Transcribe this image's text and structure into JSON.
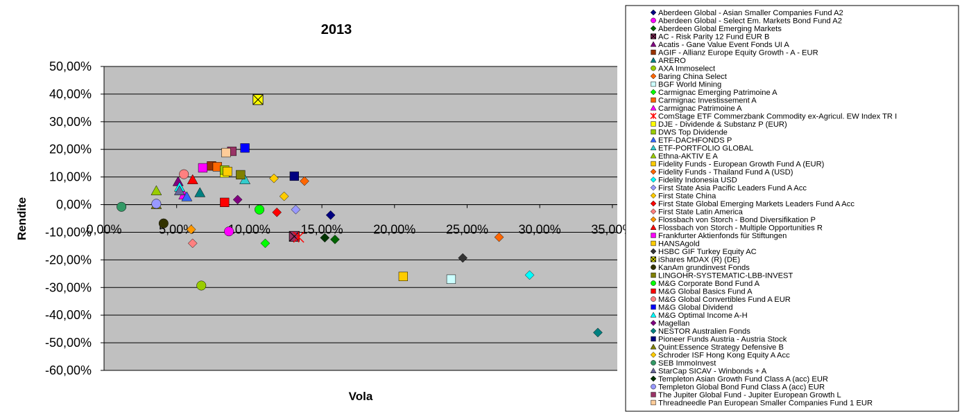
{
  "chart_data": {
    "type": "scatter",
    "title": "2013",
    "xlabel": "Vola",
    "ylabel": "Rendite",
    "xlim": [
      0,
      0.35
    ],
    "ylim": [
      -0.6,
      0.5
    ],
    "x_ticks": [
      "0,00%",
      "5,00%",
      "10,00%",
      "15,00%",
      "20,00%",
      "25,00%",
      "30,00%",
      "35,00%"
    ],
    "y_ticks": [
      "50,00%",
      "40,00%",
      "30,00%",
      "20,00%",
      "10,00%",
      "0,00%",
      "-10,00%",
      "-20,00%",
      "-30,00%",
      "-40,00%",
      "-50,00%",
      "-60,00%"
    ],
    "grid": "horizontal",
    "legend_position": "right",
    "plot_background": "#c0c0c0",
    "series": [
      {
        "name": "Aberdeen Global - Asian Smaller Companies Fund A2",
        "color": "#000080",
        "marker": "diamond",
        "x": 0.156,
        "y": -0.038
      },
      {
        "name": "Aberdeen Global - Select Em. Markets Bond Fund A2",
        "color": "#ff00ff",
        "marker": "circle",
        "x": 0.086,
        "y": -0.097
      },
      {
        "name": "Aberdeen Global Emerging Markets",
        "color": "#006400",
        "marker": "diamond",
        "x": 0.159,
        "y": -0.126
      },
      {
        "name": "AC - Risk Parity 12 Fund EUR B",
        "color": "#993366",
        "marker": "square-x",
        "x": 0.131,
        "y": -0.115
      },
      {
        "name": "Acatis - Gane Value Event Fonds UI A",
        "color": "#800080",
        "marker": "triangle",
        "x": 0.051,
        "y": 0.083
      },
      {
        "name": "AGIF - Allianz Europe Equity Growth - A - EUR",
        "color": "#993300",
        "marker": "square",
        "x": 0.074,
        "y": 0.14
      },
      {
        "name": "ARERO",
        "color": "#008080",
        "marker": "triangle",
        "x": 0.066,
        "y": 0.043
      },
      {
        "name": "AXA Immoselect",
        "color": "#99cc00",
        "marker": "circle",
        "x": 0.067,
        "y": -0.293
      },
      {
        "name": "Baring China Select",
        "color": "#ff6600",
        "marker": "diamond",
        "x": 0.138,
        "y": 0.085
      },
      {
        "name": "BGF World Mining",
        "color": "#ccffff",
        "marker": "square",
        "x": 0.239,
        "y": -0.27
      },
      {
        "name": "Carmignac Emerging Patrimoine A",
        "color": "#00ff00",
        "marker": "diamond",
        "x": 0.111,
        "y": -0.14
      },
      {
        "name": "Carmignac Investissement A",
        "color": "#ff6600",
        "marker": "square",
        "x": 0.078,
        "y": 0.137
      },
      {
        "name": "Carmignac Patrimoine A",
        "color": "#ff00ff",
        "marker": "triangle",
        "x": 0.055,
        "y": 0.035
      },
      {
        "name": "ComStage ETF Commerzbank Commodity ex-Agricul. EW Index TR I",
        "color": "#ff0000",
        "marker": "asterisk",
        "x": 0.134,
        "y": -0.118
      },
      {
        "name": "DJE - Dividende & Substanz P (EUR)",
        "color": "#ffff00",
        "marker": "square",
        "x": 0.083,
        "y": 0.115
      },
      {
        "name": "DWS Top Dividende",
        "color": "#99cc00",
        "marker": "square",
        "x": 0.083,
        "y": 0.125
      },
      {
        "name": "ETF-DACHFONDS P",
        "color": "#3366ff",
        "marker": "triangle",
        "x": 0.057,
        "y": 0.028
      },
      {
        "name": "ETF-PORTFOLIO GLOBAL",
        "color": "#33cccc",
        "marker": "triangle",
        "x": 0.097,
        "y": 0.09
      },
      {
        "name": "Ethna-AKTIV E A",
        "color": "#99cc00",
        "marker": "triangle",
        "x": 0.036,
        "y": 0.05
      },
      {
        "name": "Fidelity Funds - European Growth Fund A (EUR)",
        "color": "#ffcc00",
        "marker": "square",
        "x": 0.206,
        "y": -0.26
      },
      {
        "name": "Fidelity Funds - Thailand Fund A (USD)",
        "color": "#ff6600",
        "marker": "diamond",
        "x": 0.272,
        "y": -0.118
      },
      {
        "name": "Fidelity Indonesia USD",
        "color": "#00ffff",
        "marker": "diamond",
        "x": 0.293,
        "y": -0.255
      },
      {
        "name": "First State Asia Pacific Leaders Fund A Acc",
        "color": "#9999ff",
        "marker": "diamond",
        "x": 0.132,
        "y": -0.018
      },
      {
        "name": "First State China",
        "color": "#ffcc00",
        "marker": "diamond",
        "x": 0.117,
        "y": 0.095
      },
      {
        "name": "First State Global Emerging Markets Leaders Fund A Acc",
        "color": "#ff0000",
        "marker": "diamond",
        "x": 0.119,
        "y": -0.028
      },
      {
        "name": "First State Latin America",
        "color": "#ff8080",
        "marker": "diamond",
        "x": 0.061,
        "y": -0.14
      },
      {
        "name": "Flossbach von Storch - Bond Diversifikation P",
        "color": "#ff9900",
        "marker": "diamond",
        "x": 0.06,
        "y": -0.09
      },
      {
        "name": "Flossbach von Storch - Multiple Opportunities R",
        "color": "#ff0000",
        "marker": "triangle",
        "x": 0.061,
        "y": 0.09
      },
      {
        "name": "Frankfurter Aktienfonds für Stiftungen",
        "color": "#ff00ff",
        "marker": "square",
        "x": 0.068,
        "y": 0.133
      },
      {
        "name": "HANSAgold",
        "color": "#ffcc00",
        "marker": "square",
        "x": 0.085,
        "y": 0.12
      },
      {
        "name": "HSBC GIF Turkey Equity AC",
        "color": "#333333",
        "marker": "diamond",
        "x": 0.247,
        "y": -0.193
      },
      {
        "name": "iShares MDAX (R) (DE)",
        "color": "#ffff00",
        "marker": "square-x",
        "x": 0.106,
        "y": 0.38
      },
      {
        "name": "KanAm grundinvest Fonds",
        "color": "#333300",
        "marker": "circle",
        "x": 0.041,
        "y": -0.068
      },
      {
        "name": "LINGOHR-SYSTEMATIC-LBB-INVEST",
        "color": "#808000",
        "marker": "square",
        "x": 0.094,
        "y": 0.108
      },
      {
        "name": "M&G Corporate Bond Fund A",
        "color": "#00ff00",
        "marker": "circle",
        "x": 0.107,
        "y": -0.018
      },
      {
        "name": "M&G Global Basics Fund A",
        "color": "#ff0000",
        "marker": "square",
        "x": 0.083,
        "y": 0.008
      },
      {
        "name": "M&G Global Convertibles Fund A EUR",
        "color": "#ff8080",
        "marker": "circle",
        "x": 0.055,
        "y": 0.11
      },
      {
        "name": "M&G Global Dividend",
        "color": "#0000ff",
        "marker": "square",
        "x": 0.097,
        "y": 0.205
      },
      {
        "name": "M&G Optimal Income A-H",
        "color": "#00ffff",
        "marker": "triangle",
        "x": 0.052,
        "y": 0.063
      },
      {
        "name": "Magellan",
        "color": "#800080",
        "marker": "diamond",
        "x": 0.092,
        "y": 0.018
      },
      {
        "name": "NESTOR Australien Fonds",
        "color": "#008080",
        "marker": "diamond",
        "x": 0.34,
        "y": -0.463
      },
      {
        "name": "Pioneer Funds Austria - Austria Stock",
        "color": "#000080",
        "marker": "square",
        "x": 0.131,
        "y": 0.103
      },
      {
        "name": "Quint:Essence Strategy Defensive B",
        "color": "#808000",
        "marker": "triangle",
        "x": 0.036,
        "y": 0.0
      },
      {
        "name": "Schroder ISF Hong Kong Equity A Acc",
        "color": "#ffcc00",
        "marker": "diamond",
        "x": 0.124,
        "y": 0.03
      },
      {
        "name": "SEB ImmoInvest",
        "color": "#339966",
        "marker": "circle",
        "x": 0.012,
        "y": -0.008
      },
      {
        "name": "StarCap SICAV - Winbonds + A",
        "color": "#666699",
        "marker": "triangle",
        "x": 0.052,
        "y": 0.05
      },
      {
        "name": "Templeton Asian Growth Fund Class A (acc) EUR",
        "color": "#003300",
        "marker": "diamond",
        "x": 0.152,
        "y": -0.12
      },
      {
        "name": "Templeton Global Bond Fund Class A (acc) EUR",
        "color": "#9999ff",
        "marker": "circle",
        "x": 0.036,
        "y": 0.003
      },
      {
        "name": "The Jupiter Global Fund - Jupiter European Growth L",
        "color": "#993366",
        "marker": "square",
        "x": 0.088,
        "y": 0.193
      },
      {
        "name": "Threadneedle Pan European Smaller Companies Fund 1 EUR",
        "color": "#ffcc99",
        "marker": "square",
        "x": 0.084,
        "y": 0.188
      }
    ]
  }
}
